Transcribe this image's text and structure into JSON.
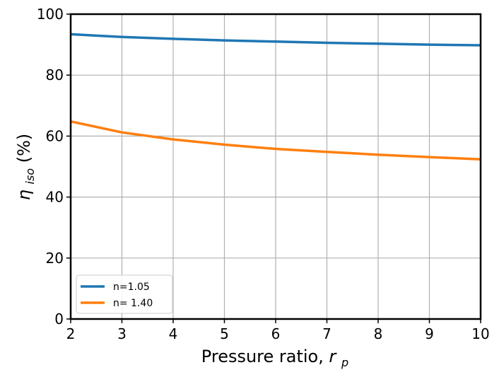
{
  "chart_data": {
    "type": "line",
    "title": "",
    "xlabel": "Pressure ratio,",
    "xlabel_symbol": "r",
    "xlabel_subscript": "p",
    "ylabel_symbol": "η",
    "ylabel_subscript": "iso",
    "ylabel_suffix": "(%)",
    "xlim": [
      2,
      10
    ],
    "ylim": [
      0,
      100
    ],
    "xticks": [
      2,
      3,
      4,
      5,
      6,
      7,
      8,
      9,
      10
    ],
    "yticks": [
      0,
      20,
      40,
      60,
      80,
      100
    ],
    "grid": true,
    "legend_position": "lower-left",
    "series": [
      {
        "name": "n=1.05",
        "color": "#1f77b4",
        "x": [
          2,
          3,
          4,
          5,
          6,
          7,
          8,
          9,
          10
        ],
        "y": [
          93.4,
          92.5,
          91.9,
          91.4,
          91.0,
          90.6,
          90.3,
          90.0,
          89.8
        ]
      },
      {
        "name": "n= 1.40",
        "color": "#ff7f0e",
        "x": [
          2,
          3,
          4,
          5,
          6,
          7,
          8,
          9,
          10
        ],
        "y": [
          64.8,
          61.2,
          58.9,
          57.2,
          55.8,
          54.8,
          53.9,
          53.1,
          52.4
        ]
      }
    ]
  }
}
